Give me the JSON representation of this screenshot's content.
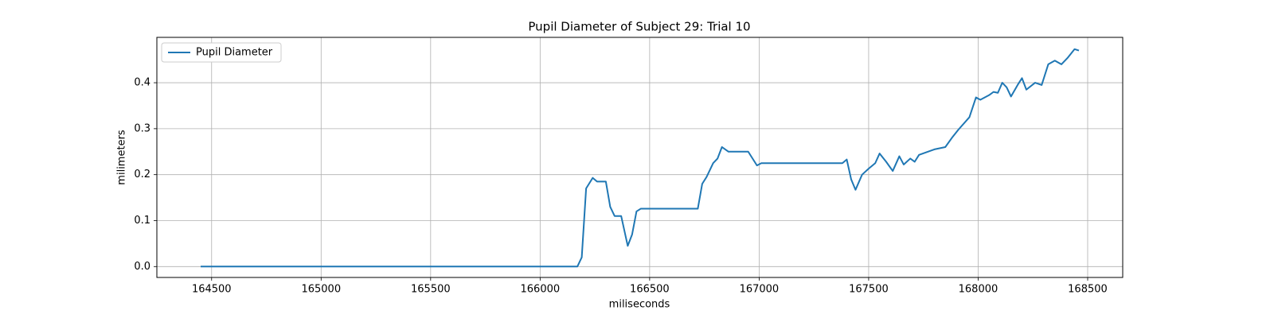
{
  "chart_data": {
    "type": "line",
    "title": "Pupil Diameter of Subject 29: Trial 10",
    "x_label": "miliseconds",
    "y_label": "milimeters",
    "xlim": [
      164250,
      168660
    ],
    "ylim": [
      -0.0237,
      0.4987
    ],
    "xticks": [
      164500,
      165000,
      165500,
      166000,
      166500,
      167000,
      167500,
      168000,
      168500
    ],
    "yticks": [
      {
        "value": 0,
        "label": "0.0"
      },
      0.1,
      0.2,
      0.3,
      0.4
    ],
    "grid": true,
    "legend": "upper left",
    "x": [
      164450,
      166170,
      166190,
      166210,
      166240,
      166260,
      166300,
      166320,
      166340,
      166370,
      166400,
      166420,
      166440,
      166460,
      166720,
      166740,
      166760,
      166790,
      166810,
      166830,
      166860,
      166950,
      166990,
      167010,
      167380,
      167400,
      167420,
      167440,
      167470,
      167500,
      167530,
      167550,
      167580,
      167610,
      167640,
      167660,
      167690,
      167710,
      167730,
      167800,
      167850,
      167880,
      167910,
      167960,
      167990,
      168010,
      168050,
      168070,
      168090,
      168110,
      168130,
      168150,
      168180,
      168200,
      168220,
      168260,
      168290,
      168320,
      168350,
      168380,
      168410,
      168440,
      168460
    ],
    "series": [
      {
        "name": "Pupil Diameter",
        "color": "#1f77b4",
        "values": [
          0,
          0,
          0.02,
          0.17,
          0.193,
          0.185,
          0.185,
          0.13,
          0.11,
          0.11,
          0.045,
          0.07,
          0.12,
          0.126,
          0.126,
          0.18,
          0.195,
          0.225,
          0.235,
          0.26,
          0.25,
          0.25,
          0.22,
          0.225,
          0.225,
          0.233,
          0.19,
          0.167,
          0.2,
          0.213,
          0.225,
          0.246,
          0.228,
          0.208,
          0.24,
          0.222,
          0.235,
          0.228,
          0.243,
          0.255,
          0.26,
          0.28,
          0.298,
          0.325,
          0.368,
          0.363,
          0.373,
          0.38,
          0.378,
          0.4,
          0.39,
          0.37,
          0.395,
          0.41,
          0.385,
          0.4,
          0.395,
          0.44,
          0.448,
          0.44,
          0.455,
          0.473,
          0.47
        ]
      }
    ]
  }
}
